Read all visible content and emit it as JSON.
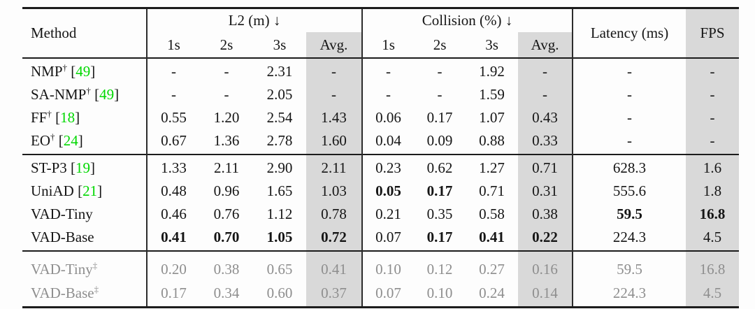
{
  "table": {
    "cite_open": "[",
    "cite_close": "]",
    "colors": {
      "citation_green": "#00d800",
      "column_shade_gray": "#d9d9d9",
      "muted_row_text": "#8e8e8e"
    },
    "header": {
      "method": "Method",
      "l2": {
        "label": "L2 (m) ↓",
        "sub": [
          "1s",
          "2s",
          "3s",
          "Avg."
        ]
      },
      "collision": {
        "label": "Collision (%) ↓",
        "sub": [
          "1s",
          "2s",
          "3s",
          "Avg."
        ]
      },
      "latency": "Latency (ms)",
      "fps": "FPS"
    },
    "groups": [
      {
        "style": "normal",
        "rows": [
          {
            "name": "NMP",
            "marker": "†",
            "cite": "49",
            "values": [
              "-",
              "-",
              "2.31",
              "-",
              "-",
              "-",
              "1.92",
              "-",
              "-",
              "-"
            ],
            "bold": []
          },
          {
            "name": "SA-NMP",
            "marker": "†",
            "cite": "49",
            "values": [
              "-",
              "-",
              "2.05",
              "-",
              "-",
              "-",
              "1.59",
              "-",
              "-",
              "-"
            ],
            "bold": []
          },
          {
            "name": "FF",
            "marker": "†",
            "cite": "18",
            "values": [
              "0.55",
              "1.20",
              "2.54",
              "1.43",
              "0.06",
              "0.17",
              "1.07",
              "0.43",
              "-",
              "-"
            ],
            "bold": []
          },
          {
            "name": "EO",
            "marker": "†",
            "cite": "24",
            "values": [
              "0.67",
              "1.36",
              "2.78",
              "1.60",
              "0.04",
              "0.09",
              "0.88",
              "0.33",
              "-",
              "-"
            ],
            "bold": []
          }
        ]
      },
      {
        "style": "normal",
        "rows": [
          {
            "name": "ST-P3",
            "marker": "",
            "cite": "19",
            "values": [
              "1.33",
              "2.11",
              "2.90",
              "2.11",
              "0.23",
              "0.62",
              "1.27",
              "0.71",
              "628.3",
              "1.6"
            ],
            "bold": []
          },
          {
            "name": "UniAD",
            "marker": "",
            "cite": "21",
            "values": [
              "0.48",
              "0.96",
              "1.65",
              "1.03",
              "0.05",
              "0.17",
              "0.71",
              "0.31",
              "555.6",
              "1.8"
            ],
            "bold": [
              4,
              5
            ]
          },
          {
            "name": "VAD-Tiny",
            "marker": "",
            "cite": "",
            "values": [
              "0.46",
              "0.76",
              "1.12",
              "0.78",
              "0.21",
              "0.35",
              "0.58",
              "0.38",
              "59.5",
              "16.8"
            ],
            "bold": [
              8,
              9
            ]
          },
          {
            "name": "VAD-Base",
            "marker": "",
            "cite": "",
            "values": [
              "0.41",
              "0.70",
              "1.05",
              "0.72",
              "0.07",
              "0.17",
              "0.41",
              "0.22",
              "224.3",
              "4.5"
            ],
            "bold": [
              0,
              1,
              2,
              3,
              5,
              6,
              7
            ]
          }
        ]
      },
      {
        "style": "muted",
        "rows": [
          {
            "name": "VAD-Tiny",
            "marker": "‡",
            "cite": "",
            "values": [
              "0.20",
              "0.38",
              "0.65",
              "0.41",
              "0.10",
              "0.12",
              "0.27",
              "0.16",
              "59.5",
              "16.8"
            ],
            "bold": []
          },
          {
            "name": "VAD-Base",
            "marker": "‡",
            "cite": "",
            "values": [
              "0.17",
              "0.34",
              "0.60",
              "0.37",
              "0.07",
              "0.10",
              "0.24",
              "0.14",
              "224.3",
              "4.5"
            ],
            "bold": []
          }
        ]
      }
    ]
  }
}
